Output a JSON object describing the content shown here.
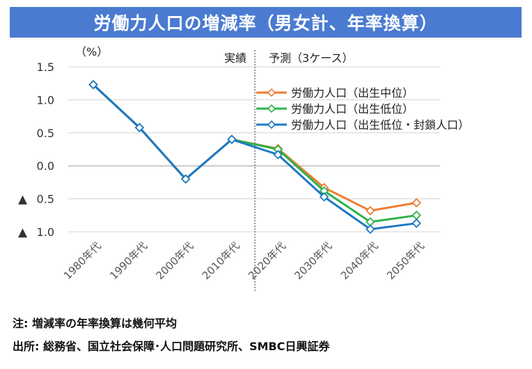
{
  "header": {
    "title": "労働力人口の増減率（男女計、年率換算）"
  },
  "notes": {
    "note": "注: 増減率の年率換算は幾何平均",
    "source": "出所: 総務省、国立社会保障･人口問題研究所、SMBC日興証券"
  },
  "chart_data": {
    "type": "line",
    "title": "労働力人口の増減率（男女計、年率換算）",
    "unit_label": "（%）",
    "categories": [
      "1980年代",
      "1990年代",
      "2000年代",
      "2010年代",
      "2020年代",
      "2030年代",
      "2040年代",
      "2050年代"
    ],
    "ylim": [
      -1.0,
      1.5
    ],
    "yticks": [
      {
        "value": 1.5,
        "label": "1.5",
        "marker": ""
      },
      {
        "value": 1.0,
        "label": "1.0",
        "marker": ""
      },
      {
        "value": 0.5,
        "label": "0.5",
        "marker": ""
      },
      {
        "value": 0.0,
        "label": "0.0",
        "marker": ""
      },
      {
        "value": -0.5,
        "label": "0.5",
        "marker": "▲"
      },
      {
        "value": -1.0,
        "label": "1.0",
        "marker": "▲"
      }
    ],
    "divider": {
      "after_index": 3,
      "left_label": "実績",
      "right_label": "予測（3ケース）"
    },
    "series": [
      {
        "name": "労働力人口（出生中位）",
        "color": "#ed7d31",
        "values": [
          1.23,
          0.58,
          -0.2,
          0.4,
          0.26,
          -0.33,
          -0.68,
          -0.56
        ]
      },
      {
        "name": "労働力人口（出生低位）",
        "color": "#2db34a",
        "values": [
          1.23,
          0.58,
          -0.2,
          0.4,
          0.25,
          -0.38,
          -0.85,
          -0.75
        ]
      },
      {
        "name": "労働力人口（出生低位・封鎖人口）",
        "color": "#1f77c4",
        "values": [
          1.23,
          0.58,
          -0.2,
          0.4,
          0.17,
          -0.47,
          -0.96,
          -0.87
        ]
      }
    ]
  }
}
